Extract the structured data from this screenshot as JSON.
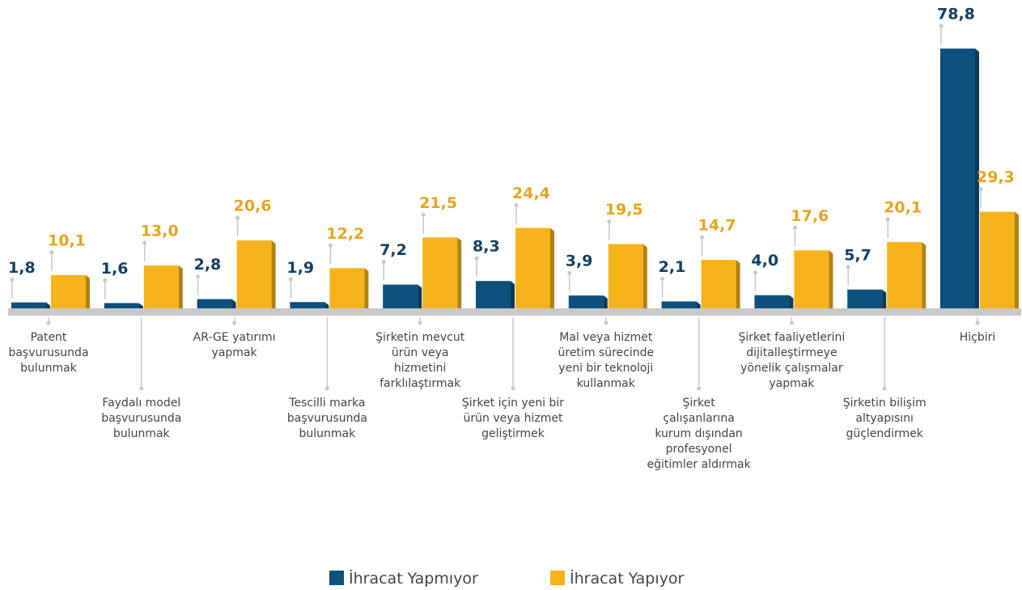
{
  "chart_data": {
    "type": "bar",
    "categories": [
      "Patent başvurusunda bulunmak",
      "Faydalı model başvurusunda bulunmak",
      "AR-GE yatırımı yapmak",
      "Tescilli marka başvurusunda bulunmak",
      "Şirketin mevcut ürün veya hizmetini farklılaştırmak",
      "Şirket için yeni bir ürün veya hizmet geliştirmek",
      "Mal veya hizmet üretim sürecinde yeni bir teknoloji kullanmak",
      "Şirket çalışanlarına kurum dışından profesyonel eğitimler aldırmak",
      "Şirket faaliyetlerini dijitalleştirmeye yönelik çalışmalar yapmak",
      "Şirketin bilişim altyapısını güçlendirmek",
      "Hiçbiri"
    ],
    "series": [
      {
        "name": "İhracat Yapmıyor",
        "color": "#0e4f7b",
        "label_color": "#143f60",
        "values": [
          1.8,
          1.6,
          2.8,
          1.9,
          7.2,
          8.3,
          3.9,
          2.1,
          4.0,
          5.7,
          78.8
        ],
        "value_labels": [
          "1,8",
          "1,6",
          "2,8",
          "1,9",
          "7,2",
          "8,3",
          "3,9",
          "2,1",
          "4,0",
          "5,7",
          "78,8"
        ]
      },
      {
        "name": "İhracat Yapıyor",
        "color": "#f7b31c",
        "label_color": "#e5a51d",
        "values": [
          10.1,
          13.0,
          20.6,
          12.2,
          21.5,
          24.4,
          19.5,
          14.7,
          17.6,
          20.1,
          29.3
        ],
        "value_labels": [
          "10,1",
          "13,0",
          "20,6",
          "12,2",
          "21,5",
          "24,4",
          "19,5",
          "14,7",
          "17,6",
          "20,1",
          "29,3"
        ]
      }
    ]
  }
}
